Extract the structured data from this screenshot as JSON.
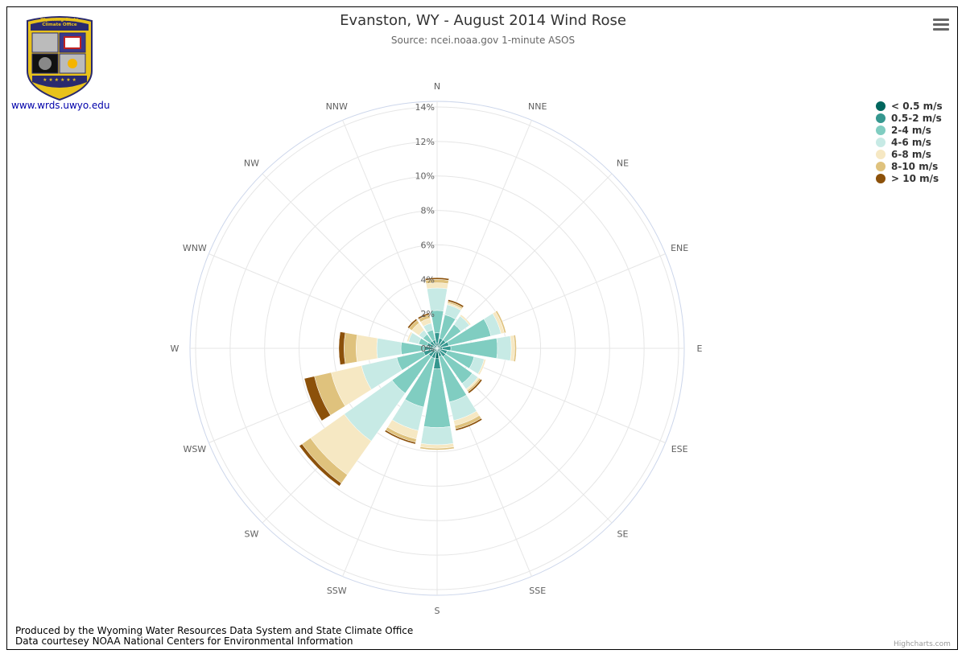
{
  "title": "Evanston, WY - August 2014 Wind Rose",
  "subtitle": "Source: ncei.noaa.gov 1-minute ASOS",
  "logo": {
    "link_text": "www.wrds.uwyo.edu",
    "banner_text": "Wyoming State Climate Office",
    "colors": {
      "navy": "#2a2a6e",
      "gold": "#e8c21a"
    }
  },
  "menu_icon": "hamburger-menu-icon",
  "footer": {
    "line1": "Produced by the Wyoming Water Resources Data System and State Climate Office",
    "line2": "Data courtesey NOAA National Centers for Environmental Information"
  },
  "credits": "Highcharts.com",
  "chart_data": {
    "type": "windrose",
    "directions": [
      "N",
      "NNE",
      "NE",
      "ENE",
      "E",
      "ESE",
      "SE",
      "SSE",
      "S",
      "SSW",
      "SW",
      "WSW",
      "W",
      "WNW",
      "NW",
      "NNW"
    ],
    "radial_ticks": [
      "0%",
      "2%",
      "4%",
      "6%",
      "8%",
      "10%",
      "12%",
      "14%"
    ],
    "rmax": 14,
    "stacking": "normal",
    "legend_position": "top-right",
    "series": [
      {
        "name": "< 0.5 m/s",
        "color": "#01665e",
        "values": [
          0.3,
          0.2,
          0.2,
          0.2,
          0.3,
          0.2,
          0.2,
          0.2,
          0.6,
          0.2,
          0.2,
          0.2,
          0.2,
          0.2,
          0.2,
          0.2
        ]
      },
      {
        "name": "0.5-2 m/s",
        "color": "#35978f",
        "values": [
          0.6,
          0.4,
          0.4,
          0.5,
          0.5,
          0.4,
          0.4,
          0.3,
          0.6,
          0.4,
          0.4,
          0.6,
          0.5,
          0.4,
          0.3,
          0.3
        ]
      },
      {
        "name": "2-4 m/s",
        "color": "#80cdc1",
        "values": [
          1.3,
          1.4,
          1.1,
          2.5,
          2.7,
          1.6,
          1.9,
          2.7,
          3.4,
          2.9,
          2.6,
          1.6,
          1.4,
          0.5,
          0.5,
          0.6
        ]
      },
      {
        "name": "4-6 m/s",
        "color": "#c7eae5",
        "values": [
          1.3,
          0.6,
          0.6,
          0.6,
          0.8,
          0.6,
          0.4,
          1.1,
          1.0,
          1.4,
          3.4,
          2.1,
          1.4,
          0.6,
          0.3,
          0.4
        ]
      },
      {
        "name": "6-8 m/s",
        "color": "#f6e8c3",
        "values": [
          0.3,
          0.1,
          0.1,
          0.2,
          0.2,
          0.1,
          0.1,
          0.3,
          0.2,
          0.5,
          2.4,
          1.8,
          1.2,
          0.1,
          0.5,
          0.3
        ]
      },
      {
        "name": "8-10 m/s",
        "color": "#dfc27d",
        "values": [
          0.2,
          0.1,
          0.0,
          0.1,
          0.1,
          0.0,
          0.1,
          0.2,
          0.1,
          0.2,
          0.6,
          1.0,
          0.7,
          0.0,
          0.2,
          0.2
        ]
      },
      {
        "name": "> 10 m/s",
        "color": "#8c510a",
        "values": [
          0.1,
          0.1,
          0.0,
          0.0,
          0.0,
          0.0,
          0.1,
          0.1,
          0.0,
          0.1,
          0.2,
          0.6,
          0.3,
          0.0,
          0.1,
          0.1
        ]
      }
    ]
  }
}
